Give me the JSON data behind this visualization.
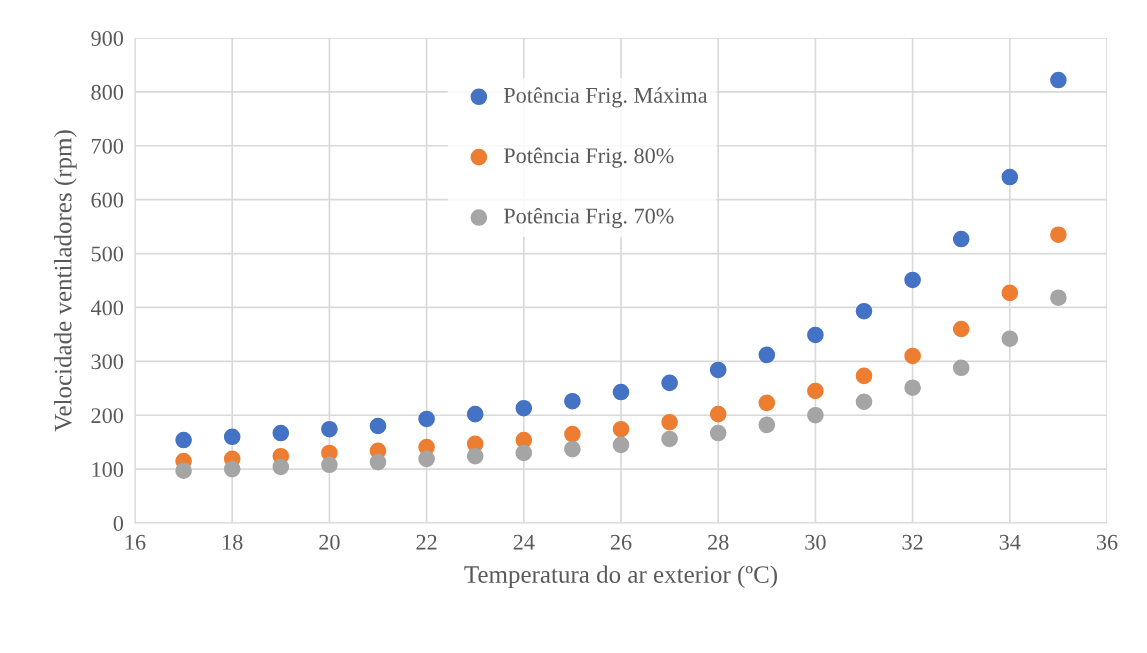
{
  "chart_data": {
    "type": "scatter",
    "xlabel": "Temperatura do ar exterior (ºC)",
    "ylabel": "Velocidade ventiladores (rpm)",
    "x": [
      17,
      18,
      19,
      20,
      21,
      22,
      23,
      24,
      25,
      26,
      27,
      28,
      29,
      30,
      31,
      32,
      33,
      34,
      35
    ],
    "series": [
      {
        "name": "Potência Frig. Máxima",
        "color": "#4472c4",
        "values": [
          154,
          160,
          167,
          174,
          180,
          193,
          202,
          213,
          226,
          243,
          260,
          284,
          312,
          349,
          393,
          451,
          527,
          642,
          822
        ]
      },
      {
        "name": "Potência Frig. 80%",
        "color": "#ed7d31",
        "values": [
          115,
          119,
          124,
          130,
          134,
          141,
          147,
          154,
          165,
          174,
          187,
          202,
          223,
          245,
          273,
          310,
          360,
          427,
          535
        ]
      },
      {
        "name": "Potência Frig. 70%",
        "color": "#a5a5a5",
        "values": [
          97,
          100,
          104,
          108,
          113,
          119,
          124,
          130,
          137,
          145,
          156,
          167,
          182,
          200,
          225,
          251,
          288,
          342,
          418
        ]
      }
    ],
    "xlim": [
      16,
      36
    ],
    "xticks": [
      16,
      18,
      20,
      22,
      24,
      26,
      28,
      30,
      32,
      34,
      36
    ],
    "ylim": [
      0,
      900
    ],
    "yticks": [
      0,
      100,
      200,
      300,
      400,
      500,
      600,
      700,
      800,
      900
    ],
    "grid": true,
    "legend": "top",
    "marker": "circle"
  }
}
